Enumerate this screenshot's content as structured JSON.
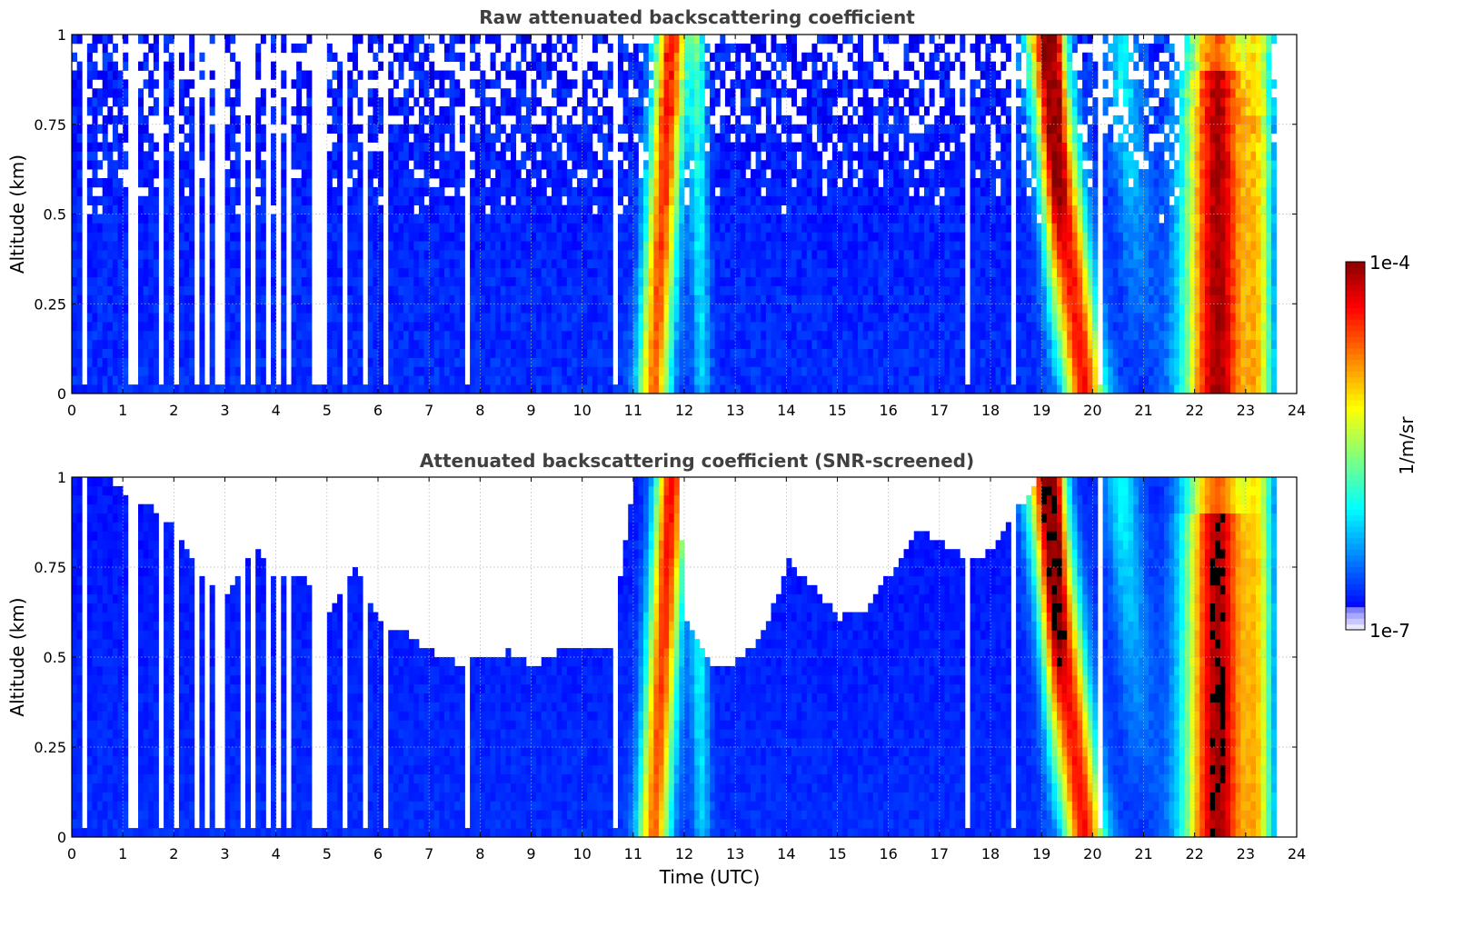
{
  "chart_data": [
    {
      "type": "heatmap",
      "title": "Raw attenuated backscattering coefficient",
      "xlabel": "",
      "ylabel": "Altitude (km)",
      "xlim": [
        0,
        24
      ],
      "ylim": [
        0,
        1
      ],
      "xticks": [
        "0",
        "1",
        "2",
        "3",
        "4",
        "5",
        "6",
        "7",
        "8",
        "9",
        "10",
        "11",
        "12",
        "13",
        "14",
        "15",
        "16",
        "17",
        "18",
        "19",
        "20",
        "21",
        "22",
        "23",
        "24"
      ],
      "yticks": [
        "0",
        "0.25",
        "0.5",
        "0.75",
        "1"
      ],
      "data_end_hour": 23.6,
      "screened": false,
      "features": [
        {
          "hours": [
            0,
            6.5
          ],
          "description": "sparse profiles, noisy upper layer"
        },
        {
          "hours": [
            11.0,
            11.8
          ],
          "description": "strong backscatter column"
        },
        {
          "hours": [
            12.1,
            12.5
          ],
          "description": "moderate backscatter column"
        },
        {
          "hours": [
            18.6,
            20.1
          ],
          "description": "strong backscatter falling to surface"
        },
        {
          "hours": [
            21.6,
            23.2
          ],
          "description": "strongest backscatter layer"
        }
      ]
    },
    {
      "type": "heatmap",
      "title": "Attenuated backscattering coefficient (SNR-screened)",
      "xlabel": "Time (UTC)",
      "ylabel": "Altitude (km)",
      "xlim": [
        0,
        24
      ],
      "ylim": [
        0,
        1
      ],
      "xticks": [
        "0",
        "1",
        "2",
        "3",
        "4",
        "5",
        "6",
        "7",
        "8",
        "9",
        "10",
        "11",
        "12",
        "13",
        "14",
        "15",
        "16",
        "17",
        "18",
        "19",
        "20",
        "21",
        "22",
        "23",
        "24"
      ],
      "yticks": [
        "0",
        "0.25",
        "0.5",
        "0.75",
        "1"
      ],
      "data_end_hour": 23.6,
      "screened": true,
      "screening_top_km": [
        [
          0,
          1.0
        ],
        [
          0.5,
          1.0
        ],
        [
          1.0,
          0.95
        ],
        [
          1.5,
          0.9
        ],
        [
          2.0,
          0.85
        ],
        [
          2.5,
          0.72
        ],
        [
          3.0,
          0.65
        ],
        [
          3.5,
          0.8
        ],
        [
          4.0,
          0.7
        ],
        [
          4.5,
          0.72
        ],
        [
          5.0,
          0.62
        ],
        [
          5.5,
          0.74
        ],
        [
          6.0,
          0.58
        ],
        [
          6.5,
          0.55
        ],
        [
          7.0,
          0.5
        ],
        [
          7.5,
          0.47
        ],
        [
          8.0,
          0.48
        ],
        [
          8.5,
          0.5
        ],
        [
          9.0,
          0.46
        ],
        [
          9.5,
          0.5
        ],
        [
          10.0,
          0.5
        ],
        [
          10.5,
          0.52
        ],
        [
          11.0,
          1.0
        ],
        [
          11.8,
          1.0
        ],
        [
          12.0,
          0.6
        ],
        [
          12.5,
          0.45
        ],
        [
          13.0,
          0.48
        ],
        [
          13.5,
          0.55
        ],
        [
          14.0,
          0.75
        ],
        [
          14.5,
          0.68
        ],
        [
          15.0,
          0.6
        ],
        [
          15.5,
          0.62
        ],
        [
          16.0,
          0.72
        ],
        [
          16.5,
          0.85
        ],
        [
          17.0,
          0.8
        ],
        [
          17.5,
          0.76
        ],
        [
          18.0,
          0.78
        ],
        [
          18.5,
          0.9
        ],
        [
          19.0,
          1.0
        ],
        [
          23.6,
          1.0
        ]
      ]
    }
  ],
  "colorbar": {
    "label": "1/m/sr",
    "max_label": "1e-4",
    "min_label": "1e-7",
    "colormap": "jet"
  }
}
